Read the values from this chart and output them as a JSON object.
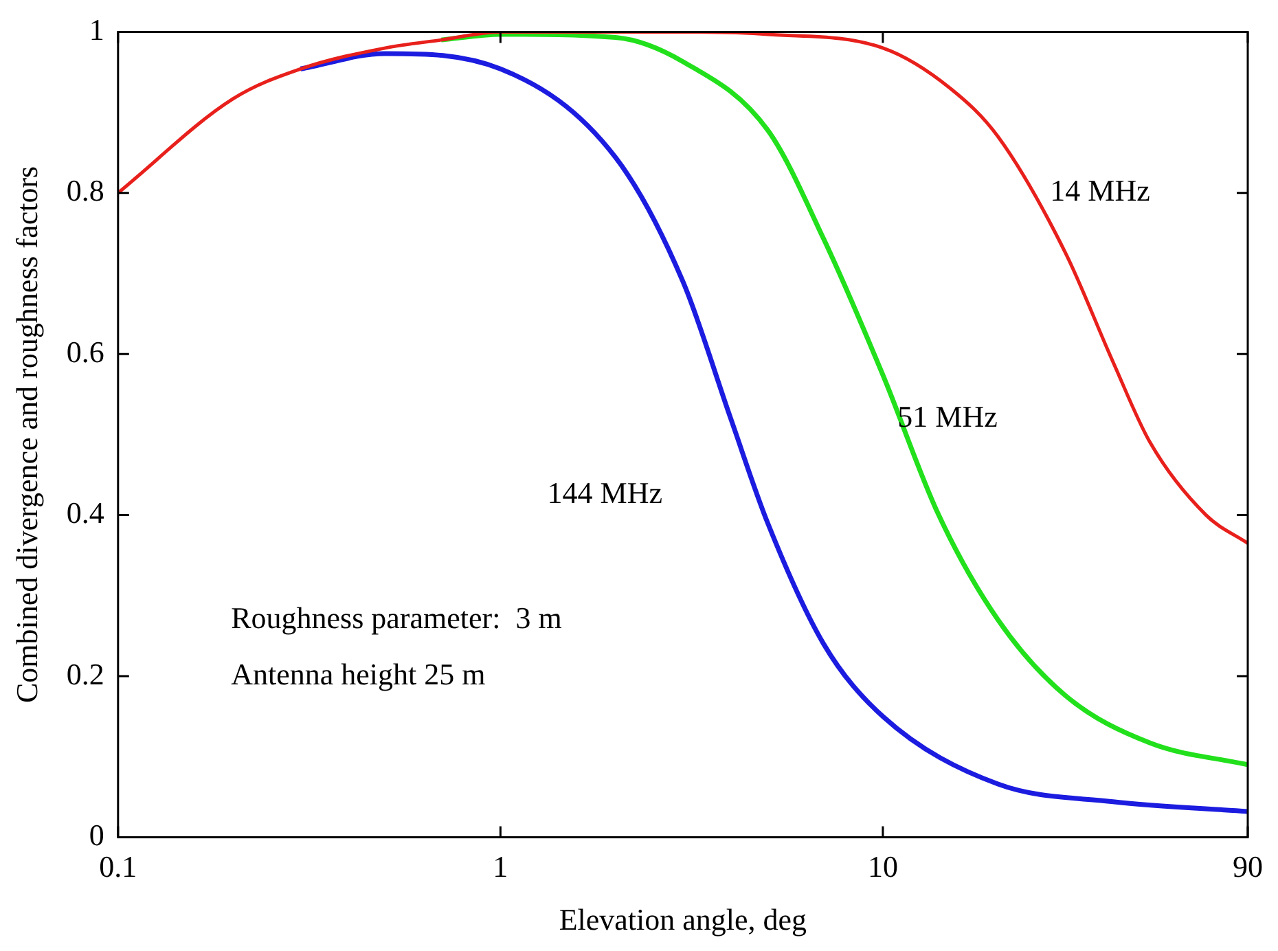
{
  "chart_data": {
    "type": "line",
    "xlabel": "Elevation angle, deg",
    "ylabel": "Combined divergence and roughness factors",
    "log": "x",
    "xlim": [
      0.1,
      90
    ],
    "xticks": [
      0.1,
      1,
      10,
      90
    ],
    "ylim": [
      0,
      1
    ],
    "yticks": [
      0,
      0.2,
      0.4,
      0.6,
      0.8,
      1
    ],
    "grid": false,
    "legend": false,
    "marker": "none",
    "line_style": "solid",
    "series": [
      {
        "name": "14 MHz",
        "color": "#e8201c",
        "x": [
          0.1,
          0.2,
          0.3,
          0.5,
          0.7,
          1,
          3,
          5,
          10,
          15,
          20,
          30,
          40,
          50,
          70,
          90
        ],
        "values": [
          0.8,
          0.917,
          0.954,
          0.98,
          0.99,
          1,
          1,
          0.997,
          0.98,
          0.93,
          0.87,
          0.726,
          0.59,
          0.49,
          0.4,
          0.365
        ]
      },
      {
        "name": "51 MHz",
        "color": "#22e01c",
        "x": [
          0.7,
          1,
          2,
          3,
          5,
          7,
          10,
          14,
          20,
          30,
          50,
          90
        ],
        "values": [
          0.99,
          0.997,
          0.993,
          0.963,
          0.878,
          0.743,
          0.574,
          0.4,
          0.27,
          0.176,
          0.117,
          0.09
        ]
      },
      {
        "name": "144 MHz",
        "color": "#1c1ce0",
        "x": [
          0.3,
          0.5,
          1,
          2,
          3,
          4,
          5,
          7,
          10,
          20,
          40,
          90
        ],
        "values": [
          0.954,
          0.973,
          0.954,
          0.844,
          0.69,
          0.52,
          0.39,
          0.24,
          0.15,
          0.066,
          0.044,
          0.032
        ]
      }
    ],
    "annotations": [
      "Roughness parameter:  3 m",
      "Antenna height 25 m"
    ]
  }
}
